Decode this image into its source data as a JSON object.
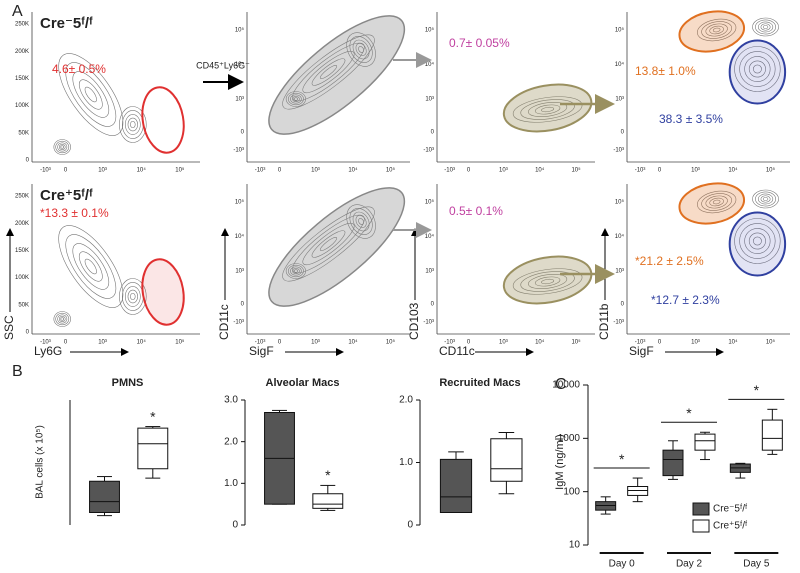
{
  "flow": {
    "panel_label": "A",
    "gate_label": "CD45⁺Ly6G⁻",
    "rows": [
      {
        "group": "Cre⁻5ᶠ/ᶠ",
        "neutrophils": "4.6± 0.5%",
        "cd103": "0.7± 0.05%",
        "cd11b_high": "13.8± 1.0%",
        "sigf_high": "38.3 ± 3.5%"
      },
      {
        "group": "Cre⁺5ᶠ/ᶠ",
        "neutrophils": "*13.3 ± 0.1%",
        "cd103": "0.5± 0.1%",
        "cd11b_high": "*21.2 ± 2.5%",
        "sigf_high": "*12.7 ± 2.3%"
      }
    ],
    "axes": [
      {
        "x": "Ly6G",
        "y": "SSC"
      },
      {
        "x": "SigF",
        "y": "CD11c"
      },
      {
        "x": "CD11c",
        "y": "CD103"
      },
      {
        "x": "SigF",
        "y": "CD11b"
      }
    ],
    "log_ticks": [
      "-10³",
      "0",
      "10³",
      "10⁴",
      "10⁵"
    ],
    "linear_ticks": [
      "0",
      "50K",
      "100K",
      "150K",
      "200K",
      "250K"
    ]
  },
  "chart_data": [
    {
      "type": "box",
      "panel_label": "B",
      "title": "PMNS",
      "ylabel": "BAL cells (x 10⁵)",
      "ylim": [
        0,
        0.8
      ],
      "boxes": [
        {
          "color": "#555555",
          "min": 0.06,
          "q1": 0.08,
          "median": 0.15,
          "q3": 0.28,
          "max": 0.31
        },
        {
          "color": "#ffffff",
          "min": 0.3,
          "q1": 0.36,
          "median": 0.52,
          "q3": 0.62,
          "max": 0.63
        }
      ],
      "annotations": [
        "*"
      ]
    },
    {
      "type": "box",
      "title": "Alveolar Macs",
      "ylim": [
        0,
        3
      ],
      "yticks": [
        0,
        {
          "value": 1,
          "label": "1.0"
        },
        {
          "value": 2,
          "label": "2.0"
        },
        {
          "value": 3,
          "label": "3.0"
        }
      ],
      "boxes": [
        {
          "color": "#555555",
          "min": 0.5,
          "q1": 0.5,
          "median": 1.6,
          "q3": 2.7,
          "max": 2.75
        },
        {
          "color": "#ffffff",
          "min": 0.35,
          "q1": 0.4,
          "median": 0.5,
          "q3": 0.75,
          "max": 0.95
        }
      ],
      "annotations": [
        "*"
      ]
    },
    {
      "type": "box",
      "title": "Recruited Macs",
      "ylim": [
        0,
        2
      ],
      "yticks": [
        0,
        {
          "value": 1,
          "label": "1.0"
        },
        {
          "value": 2,
          "label": "2.0"
        }
      ],
      "boxes": [
        {
          "color": "#555555",
          "min": 0.2,
          "q1": 0.2,
          "median": 0.45,
          "q3": 1.05,
          "max": 1.17
        },
        {
          "color": "#ffffff",
          "min": 0.5,
          "q1": 0.7,
          "median": 0.9,
          "q3": 1.38,
          "max": 1.48
        }
      ]
    },
    {
      "type": "box",
      "panel_label": "C",
      "ylabel": "IgM (ng/ml)",
      "log_scale": true,
      "ylim": [
        10,
        10000
      ],
      "yticks": [
        10,
        100,
        1000,
        10000
      ],
      "legend": "lower right",
      "categories": [
        "Day 0",
        "Day 2",
        "Day 5"
      ],
      "series": [
        {
          "name": "Cre⁻5ᶠ/ᶠ",
          "color": "#555555",
          "min": [
            38,
            170,
            180
          ],
          "q1": [
            45,
            200,
            230
          ],
          "median": [
            55,
            400,
            280
          ],
          "q3": [
            65,
            600,
            330
          ],
          "max": [
            80,
            900,
            340
          ]
        },
        {
          "name": "Cre⁺5ᶠ/ᶠ",
          "color": "#ffffff",
          "min": [
            65,
            400,
            500
          ],
          "q1": [
            85,
            600,
            600
          ],
          "median": [
            105,
            900,
            1000
          ],
          "q3": [
            125,
            1200,
            2200
          ],
          "max": [
            180,
            1300,
            3500
          ]
        }
      ],
      "annotations": [
        "*",
        "*",
        "*"
      ]
    }
  ]
}
